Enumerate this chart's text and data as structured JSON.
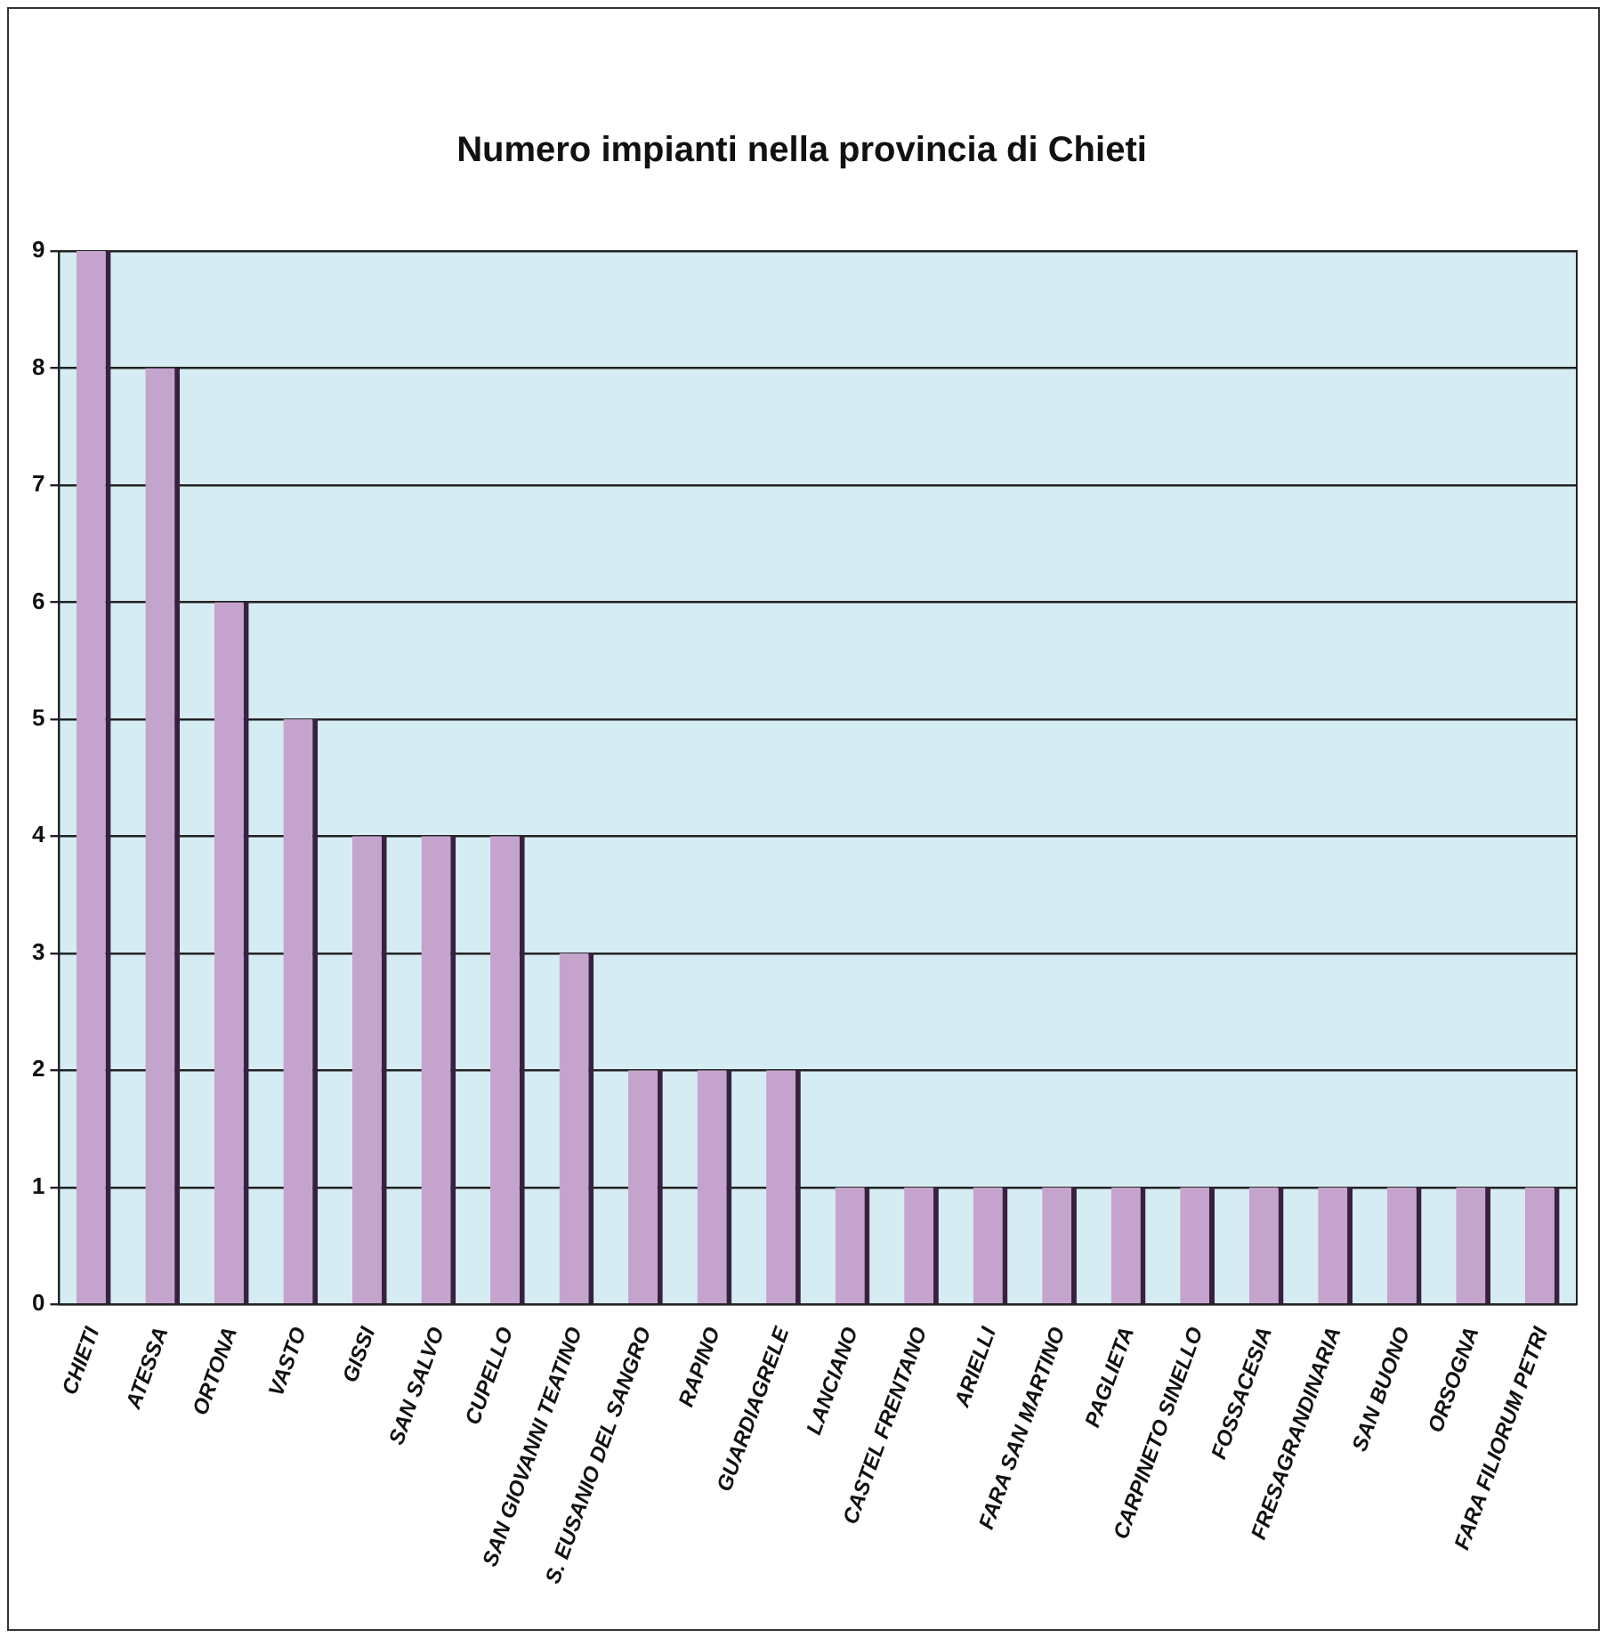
{
  "chart_data": {
    "type": "bar",
    "title": "Numero impianti nella provincia di Chieti",
    "categories": [
      "CHIETI",
      "ATESSA",
      "ORTONA",
      "VASTO",
      "GISSI",
      "SAN SALVO",
      "CUPELLO",
      "SAN GIOVANNI TEATINO",
      "S. EUSANIO DEL SANGRO",
      "RAPINO",
      "GUARDIAGRELE",
      "LANCIANO",
      "CASTEL FRENTANO",
      "ARIELLI",
      "FARA SAN MARTINO",
      "PAGLIETA",
      "CARPINETO SINELLO",
      "FOSSACESIA",
      "FRESAGRANDINARIA",
      "SAN BUONO",
      "ORSOGNA",
      "FARA FILIORUM PETRI"
    ],
    "values": [
      9,
      8,
      6,
      5,
      4,
      4,
      4,
      3,
      2,
      2,
      2,
      1,
      1,
      1,
      1,
      1,
      1,
      1,
      1,
      1,
      1,
      1
    ],
    "color": "#c4a4cc",
    "ylim": [
      0,
      9
    ],
    "yticks": [
      0,
      1,
      2,
      3,
      4,
      5,
      6,
      7,
      8,
      9
    ],
    "grid": "y",
    "legend": false
  }
}
